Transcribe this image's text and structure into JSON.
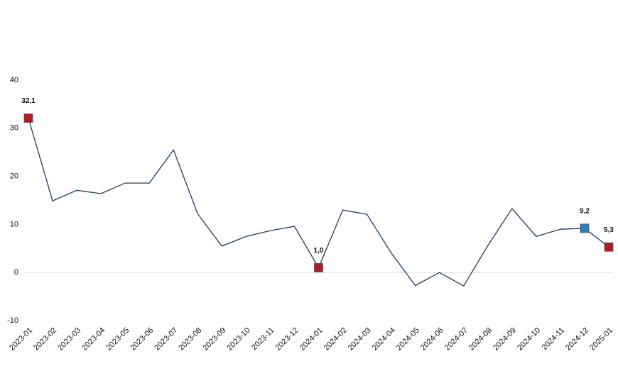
{
  "chart_data": {
    "type": "line",
    "categories": [
      "2023-01",
      "2023-02",
      "2023-03",
      "2023-04",
      "2023-05",
      "2023-06",
      "2023-07",
      "2023-08",
      "2023-09",
      "2023-10",
      "2023-11",
      "2023-12",
      "2024-01",
      "2024-02",
      "2024-03",
      "2024-04",
      "2024-05",
      "2024-06",
      "2024-07",
      "2024-08",
      "2024-09",
      "2024-10",
      "2024-11",
      "2024-12",
      "2025-01"
    ],
    "values": [
      32.1,
      14.9,
      17.1,
      16.4,
      18.6,
      18.6,
      25.5,
      12.2,
      5.5,
      7.5,
      8.7,
      9.6,
      1.0,
      13.0,
      12.1,
      4.1,
      -2.7,
      0,
      -2.8,
      5.6,
      13.3,
      7.5,
      9.0,
      9.2,
      5.3
    ],
    "value_labels": [
      "32,1",
      null,
      null,
      null,
      null,
      null,
      null,
      null,
      null,
      null,
      null,
      null,
      "1,0",
      null,
      null,
      null,
      null,
      null,
      null,
      null,
      null,
      null,
      null,
      "9,2",
      "5,3"
    ],
    "marker_colors": [
      "#b01c20",
      null,
      null,
      null,
      null,
      null,
      null,
      null,
      null,
      null,
      null,
      null,
      "#b01c20",
      null,
      null,
      null,
      null,
      null,
      null,
      null,
      null,
      null,
      null,
      "#2f7fc1",
      "#b01c20"
    ],
    "color": "#1f3a5f",
    "ylim": [
      -10,
      40
    ],
    "yticks": [
      -10,
      0,
      10,
      20,
      30,
      40
    ],
    "zero_line": true
  }
}
